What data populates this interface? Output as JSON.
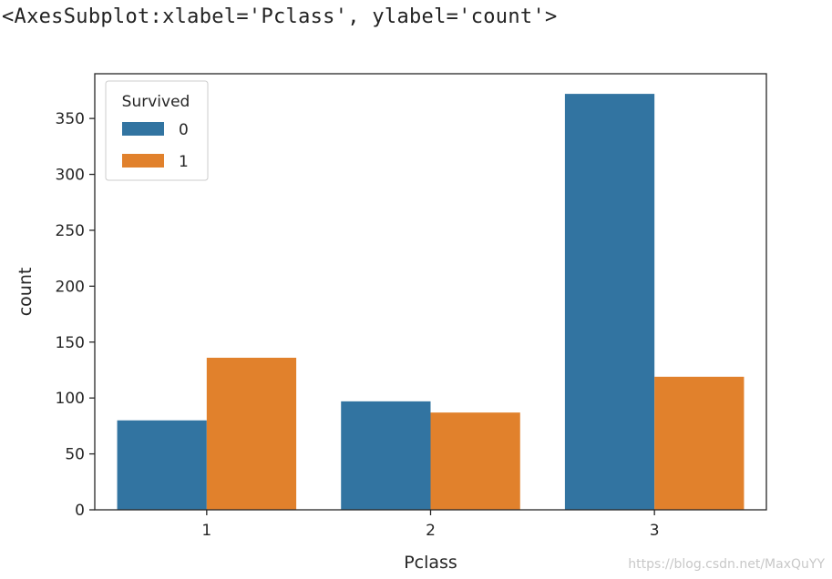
{
  "output_repr": "<AxesSubplot:xlabel='Pclass', ylabel='count'>",
  "watermark": "https://blog.csdn.net/MaxQuYY",
  "colors": {
    "series_0": "#3274a1",
    "series_1": "#e1812c",
    "axis": "#262626"
  },
  "chart_data": {
    "type": "bar",
    "categories": [
      "1",
      "2",
      "3"
    ],
    "series": [
      {
        "name": "0",
        "values": [
          80,
          97,
          372
        ]
      },
      {
        "name": "1",
        "values": [
          136,
          87,
          119
        ]
      }
    ],
    "xlabel": "Pclass",
    "ylabel": "count",
    "ylim": [
      0,
      390
    ],
    "yticks": [
      0,
      50,
      100,
      150,
      200,
      250,
      300,
      350
    ],
    "grid": false,
    "legend": {
      "title": "Survived",
      "entries": [
        "0",
        "1"
      ],
      "placement": "top-left"
    }
  }
}
